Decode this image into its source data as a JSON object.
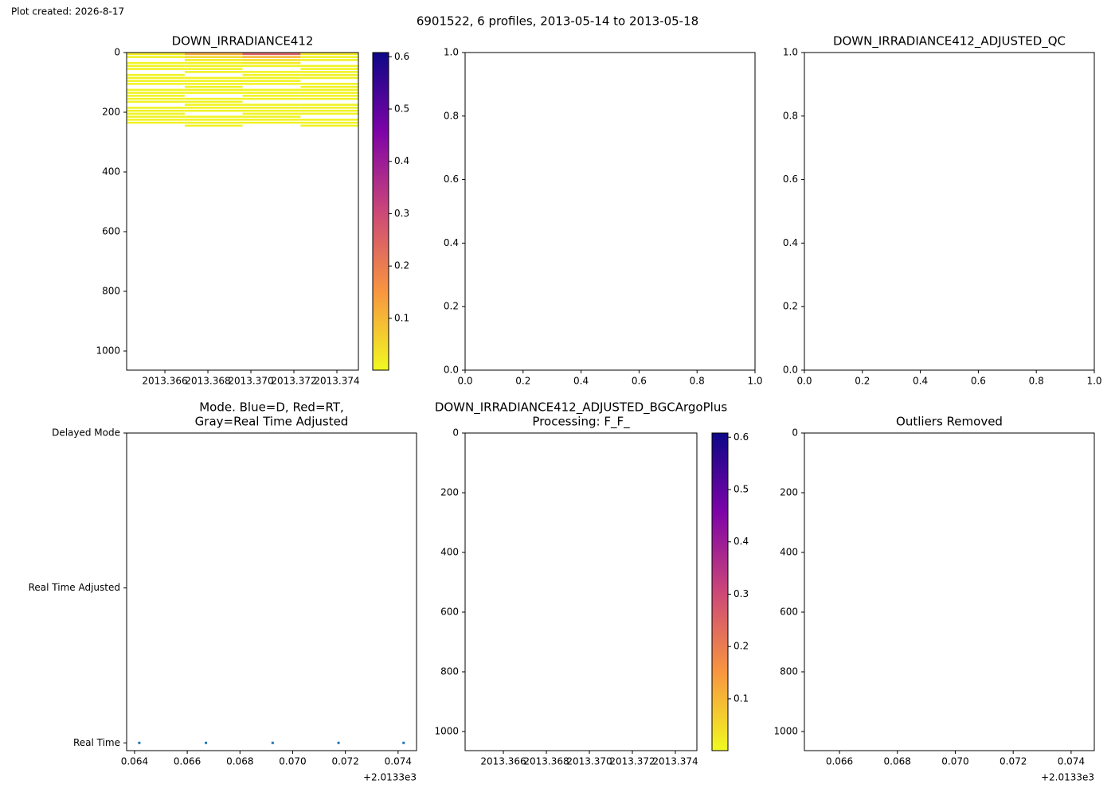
{
  "header": {
    "created": "Plot created: 2026-8-17",
    "suptitle": "6901522, 6 profiles, 2013-05-14 to 2013-05-18"
  },
  "chart_data": [
    {
      "type": "heatmap",
      "title": [
        "DOWN_IRRADIANCE412"
      ],
      "x_bins": [
        2013.36422,
        2013.36692,
        2013.36961,
        2013.37231,
        2013.375
      ],
      "y_bins": [
        0,
        10,
        20,
        30,
        40,
        50,
        60,
        70,
        80,
        90,
        100,
        110,
        120,
        130,
        140,
        150,
        160,
        170,
        180,
        190,
        200,
        210,
        220,
        230,
        240,
        250
      ],
      "z": [
        [
          0.02,
          0.01,
          null,
          0.01,
          0.01,
          0.01,
          null,
          0.01,
          0.01,
          0.01,
          0.01,
          null,
          0.01,
          0.01,
          0.01,
          0.01,
          0.01,
          null,
          0.01,
          0.01,
          0.01,
          0.01,
          0.01,
          0.01,
          null
        ],
        [
          0.12,
          0.05,
          0.02,
          0.01,
          0.01,
          0.01,
          0.01,
          null,
          0.01,
          0.01,
          0.01,
          0.01,
          0.01,
          0.01,
          null,
          0.01,
          0.01,
          0.01,
          0.01,
          0.01,
          null,
          0.01,
          0.01,
          0.01,
          0.01
        ],
        [
          0.25,
          0.1,
          0.04,
          0.02,
          0.01,
          null,
          0.01,
          0.01,
          0.01,
          0.01,
          0.01,
          null,
          0.01,
          0.01,
          0.01,
          0.01,
          null,
          0.01,
          0.01,
          0.01,
          0.01,
          0.01,
          0.01,
          0.01,
          null
        ],
        [
          0.03,
          0.01,
          0.01,
          null,
          0.01,
          0.01,
          0.01,
          0.01,
          0.01,
          null,
          0.01,
          0.01,
          0.01,
          0.01,
          0.01,
          0.01,
          null,
          0.01,
          0.01,
          0.01,
          0.01,
          null,
          0.01,
          0.01,
          0.01
        ]
      ],
      "xlim": [
        2013.36422,
        2013.375
      ],
      "xticks": [
        2013.366,
        2013.368,
        {
          "value": 2013.37,
          "label": "2013.370"
        },
        2013.372,
        2013.374
      ],
      "ylim": [
        1064,
        0
      ],
      "yticks": [
        0,
        200,
        400,
        600,
        800,
        1000
      ],
      "colormap": "plasma",
      "reverse": true,
      "clim": [
        0.001,
        0.608
      ],
      "cticks": [
        0.1,
        0.2,
        0.3,
        0.4,
        0.5,
        0.6
      ]
    },
    {
      "type": "scatter",
      "xlim": [
        0,
        1
      ],
      "xticks": [
        {
          "value": 0,
          "label": "0.0"
        },
        0.2,
        0.4,
        0.6,
        0.8,
        {
          "value": 1,
          "label": "1.0"
        }
      ],
      "ylim": [
        0,
        1
      ],
      "yticks": [
        {
          "value": 0,
          "label": "0.0"
        },
        0.2,
        0.4,
        0.6,
        0.8,
        {
          "value": 1,
          "label": "1.0"
        }
      ]
    },
    {
      "type": "scatter",
      "title": [
        "DOWN_IRRADIANCE412_ADJUSTED_QC"
      ],
      "xlim": [
        0,
        1
      ],
      "xticks": [
        {
          "value": 0,
          "label": "0.0"
        },
        0.2,
        0.4,
        0.6,
        0.8,
        {
          "value": 1,
          "label": "1.0"
        }
      ],
      "ylim": [
        0,
        1
      ],
      "yticks": [
        {
          "value": 0,
          "label": "0.0"
        },
        0.2,
        0.4,
        0.6,
        0.8,
        {
          "value": 1,
          "label": "1.0"
        }
      ]
    },
    {
      "type": "scatter",
      "title": [
        "Mode. Blue=D, Red=RT,",
        "Gray=Real Time Adjusted"
      ],
      "x": [
        0.06418,
        0.06671,
        0.06924,
        0.07174,
        0.07421
      ],
      "values": [
        1,
        1,
        1,
        1,
        1
      ],
      "color": "#1f77b4",
      "xlim": [
        0.0637,
        0.0747
      ],
      "xticks": [
        0.064,
        0.066,
        0.068,
        {
          "value": 0.07,
          "label": "0.070"
        },
        0.072,
        0.074
      ],
      "x_offset_label": "+2.0133e3",
      "ylim": [
        0.95,
        3
      ],
      "yticks": [
        {
          "value": 1,
          "label": "Real Time"
        },
        {
          "value": 2,
          "label": "Real Time Adjusted"
        },
        {
          "value": 3,
          "label": "Delayed Mode"
        }
      ]
    },
    {
      "type": "heatmap",
      "title": [
        "DOWN_IRRADIANCE412_ADJUSTED_BGCArgoPlus",
        "Processing: F_F_"
      ],
      "xlim": [
        2013.36422,
        2013.375
      ],
      "xticks": [
        2013.366,
        2013.368,
        {
          "value": 2013.37,
          "label": "2013.370"
        },
        2013.372,
        2013.374
      ],
      "ylim": [
        1064,
        0
      ],
      "yticks": [
        0,
        200,
        400,
        600,
        800,
        1000
      ],
      "colormap": "plasma",
      "reverse": true,
      "clim": [
        0.001,
        0.608
      ],
      "cticks": [
        0.1,
        0.2,
        0.3,
        0.4,
        0.5,
        0.6
      ]
    },
    {
      "type": "scatter",
      "title": [
        "Outliers Removed"
      ],
      "xlim": [
        0.06479,
        0.0748
      ],
      "xticks": [
        0.066,
        0.068,
        {
          "value": 0.07,
          "label": "0.070"
        },
        0.072,
        0.074
      ],
      "x_offset_label": "+2.0133e3",
      "ylim": [
        1064,
        0
      ],
      "yticks": [
        0,
        200,
        400,
        600,
        800,
        1000
      ]
    }
  ]
}
